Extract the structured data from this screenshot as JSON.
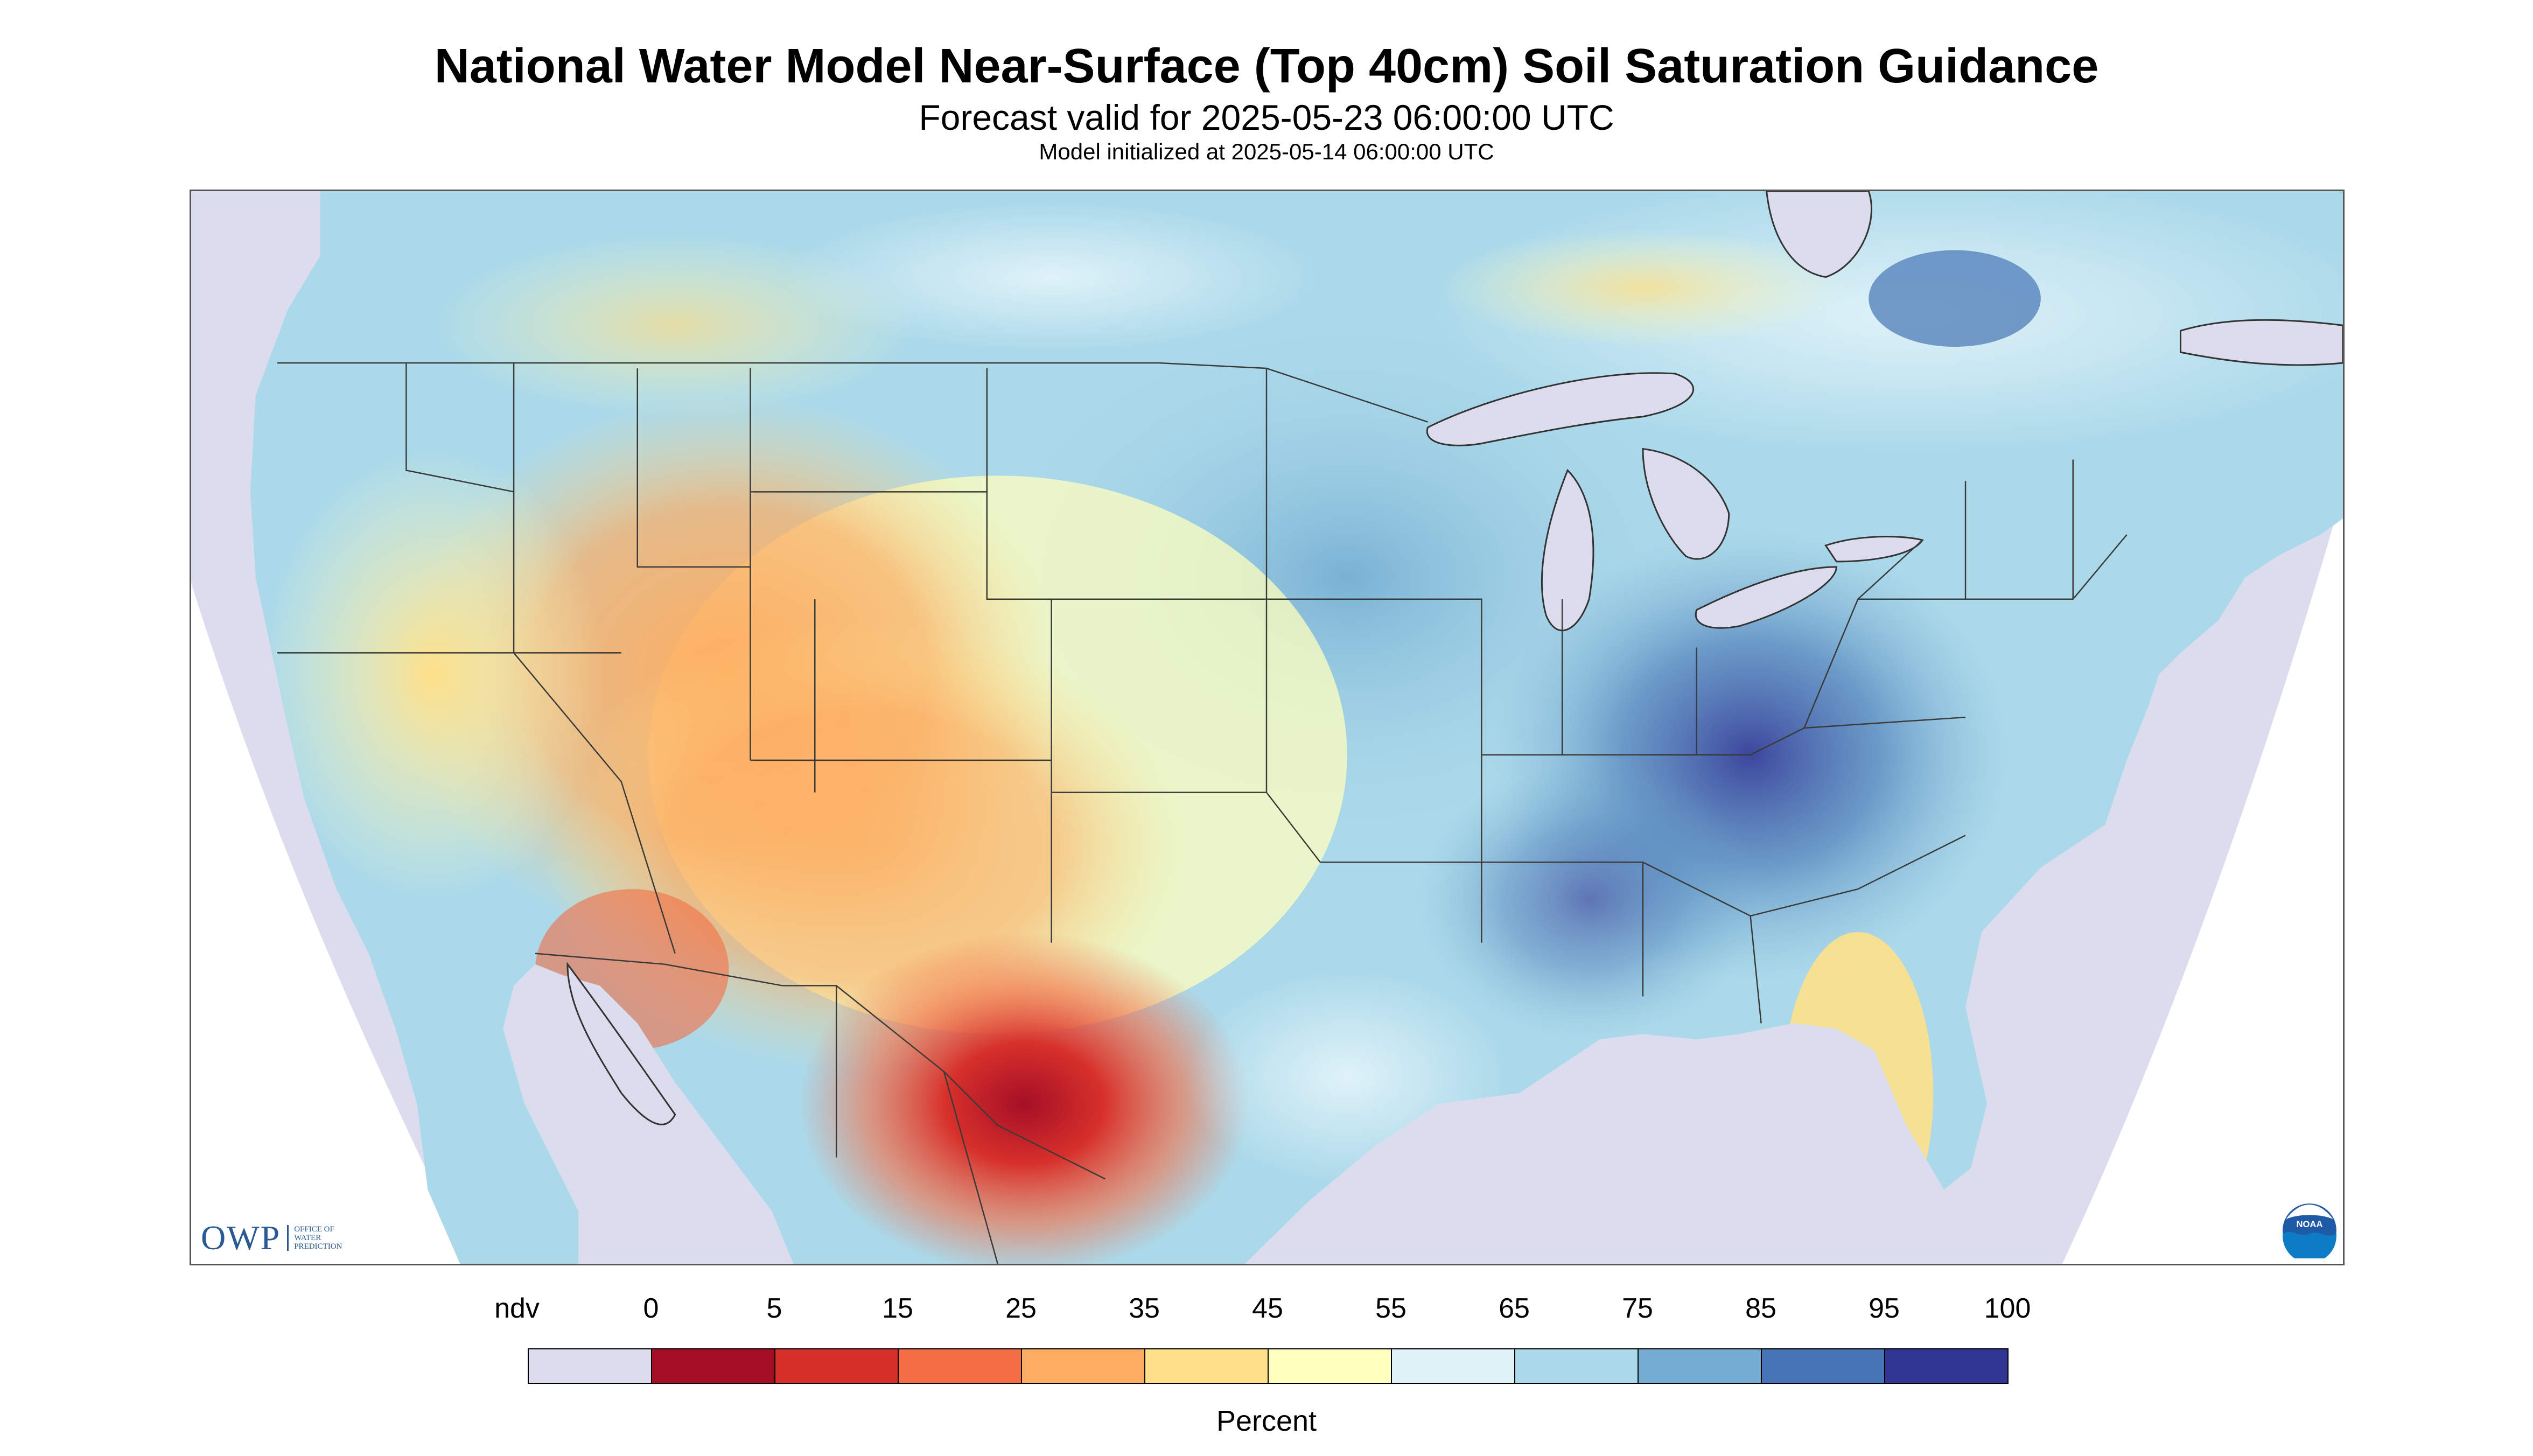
{
  "header": {
    "title": "National Water Model Near-Surface (Top 40cm) Soil Saturation Guidance",
    "forecast": "Forecast valid for 2025-05-23 06:00:00 UTC",
    "initialized": "Model initialized at 2025-05-14 06:00:00 UTC"
  },
  "logos": {
    "owp_letters": "OWP",
    "owp_text": [
      "OFFICE OF",
      "WATER",
      "PREDICTION"
    ],
    "noaa_text": "NOAA"
  },
  "map": {
    "no_data_color": "#dcdcef",
    "state_border_color": "#3a3a3a"
  },
  "legend": {
    "unit": "Percent",
    "ndv_label": "ndv",
    "ticks": [
      "0",
      "5",
      "15",
      "25",
      "35",
      "45",
      "55",
      "65",
      "75",
      "85",
      "95",
      "100"
    ],
    "bins": [
      {
        "label": "ndv",
        "color": "#dcdcef"
      },
      {
        "range": "0-5",
        "color": "#a50f26"
      },
      {
        "range": "5-15",
        "color": "#d7302b"
      },
      {
        "range": "15-25",
        "color": "#f46d43"
      },
      {
        "range": "25-35",
        "color": "#fdad61"
      },
      {
        "range": "35-45",
        "color": "#fee08a"
      },
      {
        "range": "45-55",
        "color": "#ffffbe"
      },
      {
        "range": "55-65",
        "color": "#dff2f8"
      },
      {
        "range": "65-75",
        "color": "#abd9ea"
      },
      {
        "range": "75-85",
        "color": "#74add1"
      },
      {
        "range": "85-95",
        "color": "#4575b4"
      },
      {
        "range": "95-100",
        "color": "#313694"
      }
    ]
  }
}
